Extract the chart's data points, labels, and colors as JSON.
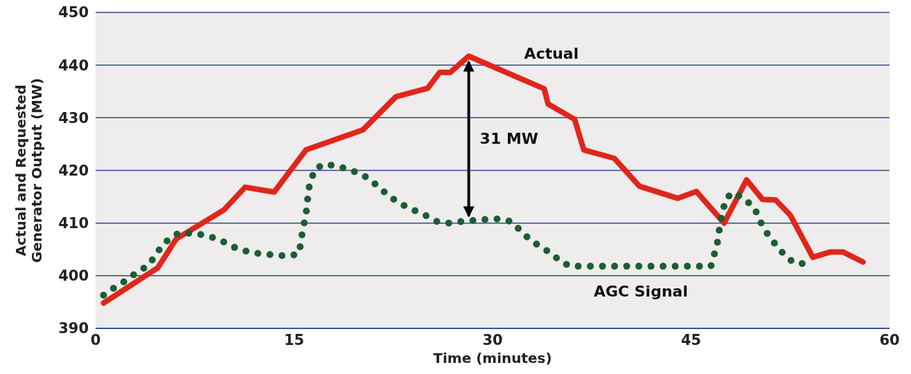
{
  "chart_data": {
    "type": "line",
    "xlabel": "Time (minutes)",
    "ylabel": "Actual and Requested Generator Output (MW)",
    "xlim": [
      0,
      60
    ],
    "xticks": [
      0,
      15,
      30,
      45,
      60
    ],
    "ylim": [
      390,
      450
    ],
    "yticks": [
      390,
      400,
      410,
      420,
      430,
      440,
      450
    ],
    "grid": "y",
    "series": [
      {
        "name": "Actual",
        "color": "#e0261b",
        "line_style": "solid",
        "x": [
          0.6,
          4.7,
          6.1,
          9.7,
          11.3,
          13.5,
          15.9,
          20.2,
          22.7,
          25.1,
          26,
          26.8,
          28.2,
          33.9,
          34.2,
          36.2,
          36.9,
          39.2,
          41.1,
          44,
          45.4,
          47.5,
          49.2,
          50.4,
          51.4,
          52.5,
          54.2,
          55.5,
          56.5,
          58
        ],
        "values": [
          394.8,
          401.5,
          407,
          412.5,
          416.8,
          415.9,
          423.9,
          427.7,
          434,
          435.6,
          438.6,
          438.6,
          441.7,
          435.5,
          432.6,
          429.7,
          423.9,
          422.3,
          417,
          414.7,
          416,
          410,
          418.2,
          414.5,
          414.4,
          411.5,
          403.5,
          404.5,
          404.5,
          402.6
        ]
      },
      {
        "name": "AGC Signal",
        "color": "#1b5e33",
        "line_style": "dotted",
        "x": [
          0.6,
          1.4,
          2.3,
          3.1,
          3.9,
          4.5,
          5,
          5.7,
          6.4,
          7.4,
          8.3,
          9.3,
          10.8,
          11.8,
          12.7,
          13.7,
          14.7,
          15.4,
          15.5,
          15.7,
          15.9,
          16,
          16.1,
          16.4,
          16.6,
          17.3,
          18.3,
          19.2,
          20.1,
          20.8,
          21.5,
          22.3,
          23.1,
          24,
          24.9,
          25.8,
          26.7,
          27.7,
          28.6,
          29.5,
          30.5,
          31.4,
          32.1,
          32.8,
          33.5,
          34.4,
          35.2,
          35.9,
          46.5,
          46.7,
          47,
          47.1,
          47.3,
          47.6,
          48.1,
          49,
          49.8,
          50.3,
          50.9,
          51.6,
          52.2,
          52.9,
          53.6
        ],
        "values": [
          396.3,
          397.7,
          399.1,
          400.6,
          401.8,
          403.7,
          405.7,
          407.3,
          408.2,
          408,
          407.7,
          406.9,
          405,
          404.4,
          404.1,
          403.9,
          403.7,
          404.3,
          406.4,
          409.2,
          411.6,
          414,
          416.5,
          419,
          420.3,
          421.2,
          420.8,
          420.1,
          419.3,
          418.1,
          416.6,
          414.9,
          413.6,
          412.5,
          411.5,
          410.3,
          410,
          410.3,
          410.5,
          410.7,
          410.8,
          410.3,
          408.6,
          406.9,
          405.7,
          404.3,
          402.6,
          401.8,
          401.8,
          403.5,
          406.4,
          408.2,
          411.1,
          414.4,
          415.8,
          414.7,
          412.8,
          410,
          407.4,
          405.3,
          403.5,
          402.3,
          402.3
        ]
      }
    ],
    "annotations": [
      "31 MW"
    ]
  }
}
